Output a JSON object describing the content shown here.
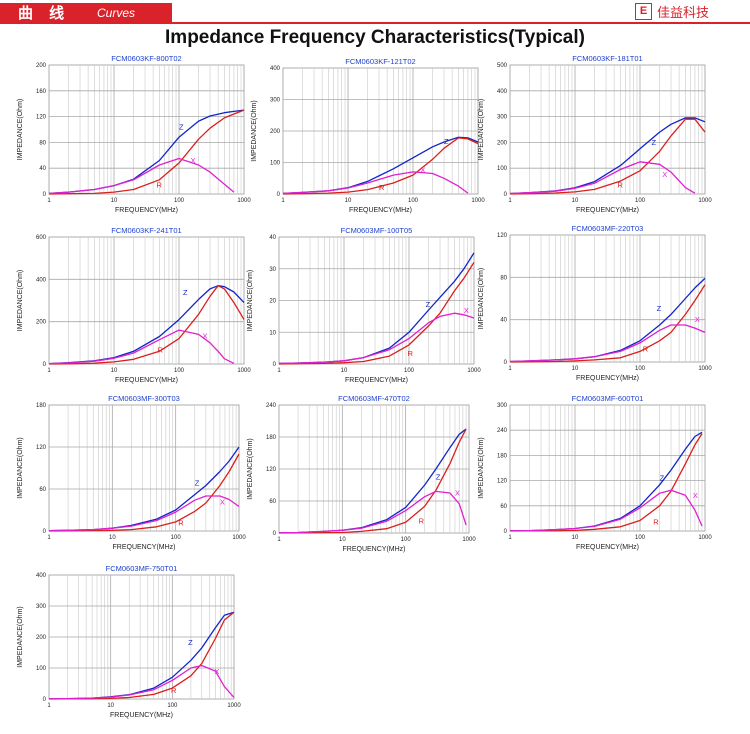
{
  "header": {
    "section_cn": "曲 线",
    "section_en": "Curves",
    "brand_logo": "E",
    "brand_name": "佳益科技",
    "colors": {
      "accent": "#d9222a"
    }
  },
  "page_title": "Impedance Frequency Characteristics(Typical)",
  "curve_colors": {
    "Z": "#1025c8",
    "R": "#d9201c",
    "X": "#e020d0"
  },
  "chart_data": [
    {
      "type": "line",
      "title": "FCM0603KF-800T02",
      "xlabel": "FREQUENCY(MHz)",
      "ylabel": "IMPEDANCE(Ohm)",
      "xscale": "log",
      "xticks": [
        "1",
        "10",
        "100",
        "1000"
      ],
      "xlim": [
        1,
        1000
      ],
      "ylim": [
        0,
        200
      ],
      "yticks": [
        0,
        40,
        80,
        120,
        160,
        200
      ],
      "x": [
        1,
        2,
        5,
        10,
        20,
        50,
        100,
        200,
        300,
        500,
        700,
        1000
      ],
      "series": [
        {
          "name": "Z",
          "values": [
            1,
            3,
            7,
            13,
            23,
            52,
            88,
            113,
            121,
            126,
            128,
            130
          ]
        },
        {
          "name": "R",
          "values": [
            0,
            0.5,
            1,
            3,
            7,
            22,
            48,
            85,
            102,
            118,
            124,
            130
          ]
        },
        {
          "name": "X",
          "values": [
            1,
            3,
            7,
            13,
            22,
            45,
            55,
            45,
            34,
            15,
            3,
            null
          ]
        }
      ],
      "labels": [
        {
          "series": "Z",
          "x": 100,
          "y": 100
        },
        {
          "series": "X",
          "x": 150,
          "y": 48
        },
        {
          "series": "R",
          "x": 45,
          "y": 10
        }
      ]
    },
    {
      "type": "line",
      "title": "FCM0603KF-121T02",
      "xlabel": "FREQUENCY(MHz)",
      "ylabel": "IMPEDANCE(Ohm)",
      "xscale": "log",
      "xticks": [
        "1",
        "10",
        "100",
        "1000"
      ],
      "xlim": [
        1,
        1000
      ],
      "ylim": [
        0,
        400
      ],
      "yticks": [
        0,
        100,
        200,
        300,
        400
      ],
      "x": [
        1,
        2,
        5,
        10,
        20,
        50,
        100,
        200,
        300,
        500,
        700,
        1000
      ],
      "series": [
        {
          "name": "Z",
          "values": [
            2,
            5,
            10,
            20,
            40,
            80,
            115,
            150,
            165,
            180,
            178,
            165
          ]
        },
        {
          "name": "R",
          "values": [
            0,
            1,
            3,
            6,
            14,
            35,
            60,
            110,
            145,
            178,
            175,
            160
          ]
        },
        {
          "name": "X",
          "values": [
            2,
            5,
            10,
            19,
            35,
            60,
            70,
            65,
            50,
            25,
            3,
            null
          ]
        }
      ],
      "labels": [
        {
          "series": "Z",
          "x": 300,
          "y": 158
        },
        {
          "series": "X",
          "x": 130,
          "y": 68
        },
        {
          "series": "R",
          "x": 30,
          "y": 12
        }
      ]
    },
    {
      "type": "line",
      "title": "FCM0603KF-181T01",
      "xlabel": "FREQUENCY(MHz)",
      "ylabel": "IMPEDANCE(Ohm)",
      "xscale": "log",
      "xticks": [
        "1",
        "10",
        "100",
        "1000"
      ],
      "xlim": [
        1,
        1000
      ],
      "ylim": [
        0,
        500
      ],
      "yticks": [
        0,
        100,
        200,
        300,
        400,
        500
      ],
      "x": [
        1,
        2,
        5,
        10,
        20,
        50,
        100,
        200,
        300,
        500,
        700,
        1000
      ],
      "series": [
        {
          "name": "Z",
          "values": [
            2,
            5,
            12,
            24,
            48,
            110,
            175,
            240,
            270,
            295,
            295,
            280
          ]
        },
        {
          "name": "R",
          "values": [
            0,
            1,
            4,
            8,
            18,
            50,
            90,
            165,
            225,
            290,
            290,
            240
          ]
        },
        {
          "name": "X",
          "values": [
            2,
            5,
            11,
            22,
            42,
            95,
            125,
            115,
            85,
            25,
            3,
            null
          ]
        }
      ],
      "labels": [
        {
          "series": "Z",
          "x": 150,
          "y": 190
        },
        {
          "series": "X",
          "x": 220,
          "y": 65
        },
        {
          "series": "R",
          "x": 45,
          "y": 25
        }
      ]
    },
    {
      "type": "line",
      "title": "FCM0603KF-241T01",
      "xlabel": "FREQUENCY(MHz)",
      "ylabel": "IMPEDANCE(Ohm)",
      "xscale": "log",
      "xticks": [
        "1",
        "10",
        "100",
        "1000"
      ],
      "xlim": [
        1,
        1000
      ],
      "ylim": [
        0,
        600
      ],
      "yticks": [
        0,
        200,
        400,
        600
      ],
      "x": [
        1,
        2,
        5,
        10,
        20,
        50,
        100,
        200,
        300,
        400,
        500,
        700,
        1000
      ],
      "series": [
        {
          "name": "Z",
          "values": [
            2,
            6,
            15,
            30,
            60,
            130,
            210,
            305,
            355,
            370,
            365,
            340,
            290
          ]
        },
        {
          "name": "R",
          "values": [
            0,
            1,
            4,
            10,
            22,
            60,
            120,
            235,
            320,
            370,
            355,
            290,
            210
          ]
        },
        {
          "name": "X",
          "values": [
            2,
            5,
            13,
            27,
            52,
            115,
            160,
            140,
            100,
            60,
            25,
            3,
            null
          ]
        }
      ],
      "labels": [
        {
          "series": "Z",
          "x": 115,
          "y": 325
        },
        {
          "series": "X",
          "x": 230,
          "y": 120
        },
        {
          "series": "R",
          "x": 47,
          "y": 55
        }
      ]
    },
    {
      "type": "line",
      "title": "FCM0603MF-100T05",
      "xlabel": "FREQUENCY(MHz)",
      "ylabel": "IMPEDANCE(Ohm)",
      "xscale": "log",
      "xticks": [
        "1",
        "10",
        "100",
        "1000"
      ],
      "xlim": [
        1,
        1000
      ],
      "ylim": [
        0,
        40
      ],
      "yticks": [
        0,
        10,
        20,
        30,
        40
      ],
      "x": [
        1,
        2,
        5,
        10,
        20,
        50,
        100,
        200,
        300,
        500,
        700,
        1000
      ],
      "series": [
        {
          "name": "Z",
          "values": [
            0.2,
            0.3,
            0.6,
            1,
            2,
            5,
            10,
            17,
            21,
            26,
            30,
            35
          ]
        },
        {
          "name": "R",
          "values": [
            0,
            0.1,
            0.2,
            0.4,
            0.8,
            2.5,
            6,
            12,
            16,
            23,
            27,
            32
          ]
        },
        {
          "name": "X",
          "values": [
            0.2,
            0.3,
            0.6,
            1,
            2,
            4.5,
            8,
            13,
            15,
            16,
            15.5,
            14.5
          ]
        }
      ],
      "labels": [
        {
          "series": "Z",
          "x": 180,
          "y": 18
        },
        {
          "series": "X",
          "x": 700,
          "y": 16
        },
        {
          "series": "R",
          "x": 95,
          "y": 2.5
        }
      ]
    },
    {
      "type": "line",
      "title": "FCM0603MF-220T03",
      "xlabel": "FREQUENCY(MHz)",
      "ylabel": "IMPEDANCE(Ohm)",
      "xscale": "log",
      "xticks": [
        "1",
        "10",
        "100",
        "1000"
      ],
      "xlim": [
        1,
        1000
      ],
      "ylim": [
        0,
        120
      ],
      "yticks": [
        0,
        40,
        80,
        120
      ],
      "x": [
        1,
        2,
        5,
        10,
        20,
        50,
        100,
        200,
        300,
        500,
        700,
        1000
      ],
      "series": [
        {
          "name": "Z",
          "values": [
            0.5,
            1,
            2,
            3,
            5,
            11,
            20,
            35,
            45,
            60,
            70,
            79
          ]
        },
        {
          "name": "R",
          "values": [
            0,
            0.2,
            0.5,
            1,
            2,
            4,
            10,
            20,
            28,
            45,
            58,
            73
          ]
        },
        {
          "name": "X",
          "values": [
            0.5,
            1,
            2,
            3,
            5,
            10,
            18,
            30,
            35,
            35,
            32,
            28
          ]
        }
      ],
      "labels": [
        {
          "series": "Z",
          "x": 180,
          "y": 48
        },
        {
          "series": "X",
          "x": 700,
          "y": 38
        },
        {
          "series": "R",
          "x": 110,
          "y": 10
        }
      ]
    },
    {
      "type": "line",
      "title": "FCM0603MF-300T03",
      "xlabel": "FREQUENCY(MHz)",
      "ylabel": "IMPEDANCE(Ohm)",
      "xscale": "log",
      "xticks": [
        "1",
        "10",
        "100",
        "1000"
      ],
      "xlim": [
        1,
        1000
      ],
      "ylim": [
        0,
        180
      ],
      "yticks": [
        0,
        60,
        120,
        180
      ],
      "x": [
        1,
        2,
        5,
        10,
        20,
        50,
        100,
        200,
        300,
        500,
        700,
        1000
      ],
      "series": [
        {
          "name": "Z",
          "values": [
            0.5,
            1,
            2,
            4,
            8,
            17,
            30,
            52,
            65,
            85,
            100,
            120
          ]
        },
        {
          "name": "R",
          "values": [
            0,
            0.2,
            0.5,
            1,
            2,
            6,
            13,
            28,
            40,
            65,
            85,
            110
          ]
        },
        {
          "name": "X",
          "values": [
            0.5,
            1,
            2,
            4,
            7,
            15,
            27,
            44,
            50,
            50,
            45,
            35
          ]
        }
      ],
      "labels": [
        {
          "series": "Z",
          "x": 200,
          "y": 65
        },
        {
          "series": "X",
          "x": 500,
          "y": 38
        },
        {
          "series": "R",
          "x": 110,
          "y": 8
        }
      ]
    },
    {
      "type": "line",
      "title": "FCM0603MF-470T02",
      "xlabel": "FREQUENCY(MHz)",
      "ylabel": "IMPEDANCE(Ohm)",
      "xscale": "log",
      "xticks": [
        "1",
        "10",
        "100",
        "1000"
      ],
      "xlim": [
        1,
        1000
      ],
      "ylim": [
        0,
        240
      ],
      "yticks": [
        0,
        60,
        120,
        180,
        240
      ],
      "x": [
        1,
        2,
        5,
        10,
        20,
        50,
        100,
        200,
        300,
        500,
        700,
        900
      ],
      "series": [
        {
          "name": "Z",
          "values": [
            0.5,
            1,
            3,
            5,
            10,
            25,
            48,
            90,
            120,
            160,
            185,
            195
          ]
        },
        {
          "name": "R",
          "values": [
            0,
            0.2,
            0.5,
            1,
            3,
            8,
            20,
            50,
            80,
            130,
            170,
            195
          ]
        },
        {
          "name": "X",
          "values": [
            0.5,
            1,
            3,
            5,
            9,
            22,
            42,
            68,
            78,
            75,
            55,
            15
          ]
        }
      ],
      "labels": [
        {
          "series": "Z",
          "x": 300,
          "y": 100
        },
        {
          "series": "X",
          "x": 600,
          "y": 70
        },
        {
          "series": "R",
          "x": 160,
          "y": 18
        }
      ]
    },
    {
      "type": "line",
      "title": "FCM0603MF-600T01",
      "xlabel": "FREQUENCY(MHz)",
      "ylabel": "IMPEDANCE(Ohm)",
      "xscale": "log",
      "xticks": [
        "1",
        "10",
        "100",
        "1000"
      ],
      "xlim": [
        1,
        1000
      ],
      "ylim": [
        0,
        300
      ],
      "yticks": [
        0,
        60,
        120,
        180,
        240,
        300
      ],
      "x": [
        1,
        2,
        5,
        10,
        20,
        50,
        100,
        200,
        300,
        500,
        700,
        900
      ],
      "series": [
        {
          "name": "Z",
          "values": [
            0.5,
            1,
            3,
            6,
            12,
            30,
            60,
            110,
            145,
            195,
            225,
            235
          ]
        },
        {
          "name": "R",
          "values": [
            0,
            0.2,
            0.5,
            1.5,
            4,
            10,
            25,
            60,
            95,
            160,
            205,
            232
          ]
        },
        {
          "name": "X",
          "values": [
            0.5,
            1,
            3,
            6,
            11,
            28,
            55,
            90,
            97,
            85,
            50,
            12
          ]
        }
      ],
      "labels": [
        {
          "series": "Z",
          "x": 200,
          "y": 120
        },
        {
          "series": "X",
          "x": 650,
          "y": 78
        },
        {
          "series": "R",
          "x": 160,
          "y": 15
        }
      ]
    },
    {
      "type": "line",
      "title": "FCM0603MF-750T01",
      "xlabel": "FREQUENCY(MHz)",
      "ylabel": "IMPEDANCE(Ohm)",
      "xscale": "log",
      "xticks": [
        "1",
        "10",
        "100",
        "1000"
      ],
      "xlim": [
        1,
        1000
      ],
      "ylim": [
        0,
        400
      ],
      "yticks": [
        0,
        100,
        200,
        300,
        400
      ],
      "x": [
        1,
        2,
        5,
        10,
        20,
        50,
        100,
        200,
        300,
        500,
        700,
        1000
      ],
      "series": [
        {
          "name": "Z",
          "values": [
            0.5,
            1,
            3,
            7,
            14,
            35,
            70,
            125,
            165,
            230,
            270,
            280
          ]
        },
        {
          "name": "R",
          "values": [
            0,
            0.2,
            0.5,
            2,
            5,
            15,
            35,
            75,
            115,
            195,
            255,
            280
          ]
        },
        {
          "name": "X",
          "values": [
            0.5,
            1,
            3,
            6,
            13,
            30,
            60,
            100,
            108,
            90,
            40,
            5
          ]
        }
      ],
      "labels": [
        {
          "series": "Z",
          "x": 180,
          "y": 175
        },
        {
          "series": "X",
          "x": 480,
          "y": 80
        },
        {
          "series": "R",
          "x": 95,
          "y": 20
        }
      ]
    }
  ]
}
